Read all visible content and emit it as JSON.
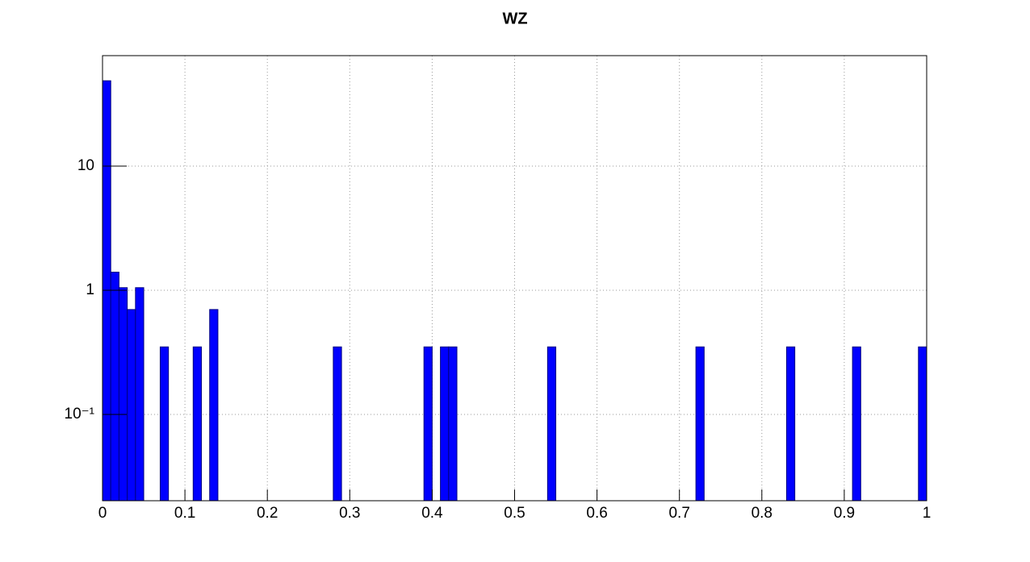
{
  "chart_data": {
    "type": "histogram",
    "title": "WZ",
    "bins": [
      0,
      0.01,
      0.02,
      0.03,
      0.04,
      0.05,
      0.06,
      0.07,
      0.08,
      0.09,
      0.1,
      0.11,
      0.12,
      0.13,
      0.14,
      0.15,
      0.16,
      0.17,
      0.18,
      0.19,
      0.2,
      0.21,
      0.22,
      0.23,
      0.24,
      0.25,
      0.26,
      0.27,
      0.28,
      0.29,
      0.3,
      0.31,
      0.32,
      0.33,
      0.34,
      0.35,
      0.36,
      0.37,
      0.38,
      0.39,
      0.4,
      0.41,
      0.42,
      0.43,
      0.44,
      0.45,
      0.46,
      0.47,
      0.48,
      0.49,
      0.5,
      0.51,
      0.52,
      0.53,
      0.54,
      0.55,
      0.56,
      0.57,
      0.58,
      0.59,
      0.6,
      0.61,
      0.62,
      0.63,
      0.64,
      0.65,
      0.66,
      0.67,
      0.68,
      0.69,
      0.7,
      0.71,
      0.72,
      0.73,
      0.74,
      0.75,
      0.76,
      0.77,
      0.78,
      0.79,
      0.8,
      0.81,
      0.82,
      0.83,
      0.84,
      0.85,
      0.86,
      0.87,
      0.88,
      0.89,
      0.9,
      0.91,
      0.92,
      0.93,
      0.94,
      0.95,
      0.96,
      0.97,
      0.98,
      0.99,
      1
    ],
    "values": [
      48.7,
      1.4,
      1.05,
      0.7,
      1.05,
      0,
      0,
      0.35,
      0,
      0,
      0,
      0.35,
      0,
      0.7,
      0,
      0,
      0,
      0,
      0,
      0,
      0,
      0,
      0,
      0,
      0,
      0,
      0,
      0,
      0.35,
      0,
      0,
      0,
      0,
      0,
      0,
      0,
      0,
      0,
      0,
      0.35,
      0,
      0.35,
      0.35,
      0,
      0,
      0,
      0,
      0,
      0,
      0,
      0,
      0,
      0,
      0,
      0.35,
      0,
      0,
      0,
      0,
      0,
      0,
      0,
      0,
      0,
      0,
      0,
      0,
      0,
      0,
      0,
      0,
      0,
      0.35,
      0,
      0,
      0,
      0,
      0,
      0,
      0,
      0,
      0,
      0,
      0.35,
      0,
      0,
      0,
      0,
      0,
      0,
      0,
      0.35,
      0,
      0,
      0,
      0,
      0,
      0,
      0,
      0.35
    ],
    "color": "#0000ff",
    "xlim": [
      0,
      1
    ],
    "xticks": [
      0,
      0.1,
      0.2,
      0.3,
      0.4,
      0.5,
      0.6,
      0.7,
      0.8,
      0.9,
      1
    ],
    "ylim": [
      0.0202,
      77.6
    ],
    "log_y": true,
    "yticks": [
      {
        "value": 0.1,
        "label": "10⁻¹"
      },
      1,
      10
    ],
    "grid": true
  }
}
